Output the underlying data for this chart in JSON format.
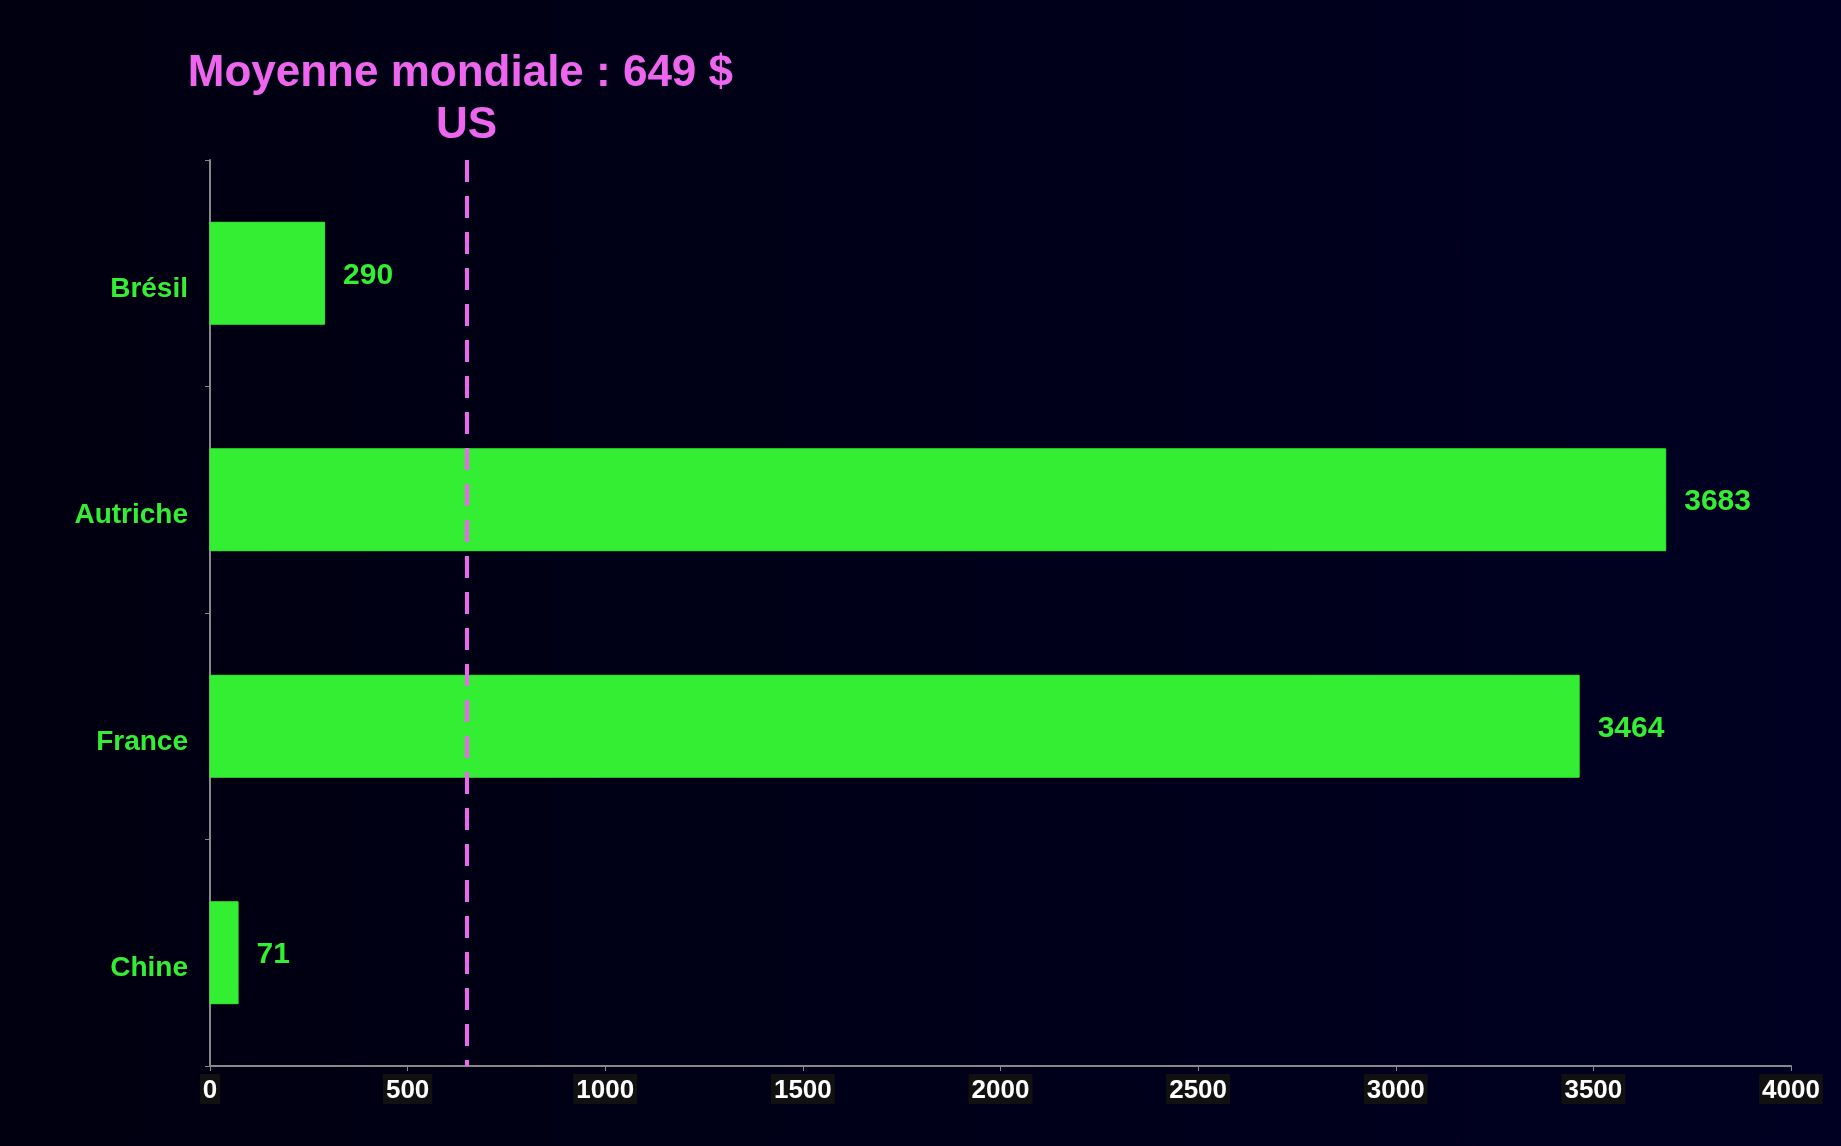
{
  "chart_data": {
    "type": "bar",
    "orientation": "horizontal",
    "categories": [
      "Brésil",
      "Autriche",
      "France",
      "Chine"
    ],
    "values": [
      290,
      3683,
      3464,
      71
    ],
    "color": "#33ee33",
    "xlim": [
      0,
      4000
    ],
    "xticks": [
      0,
      500,
      1000,
      1500,
      2000,
      2500,
      3000,
      3500,
      4000
    ],
    "data_labels": true,
    "grid": false,
    "ref_lines": [
      {
        "axis": "x",
        "value": 649,
        "label": "Moyenne mondiale : 649 $ US",
        "color": "#ee66ee",
        "line_style": "dashed"
      }
    ]
  }
}
